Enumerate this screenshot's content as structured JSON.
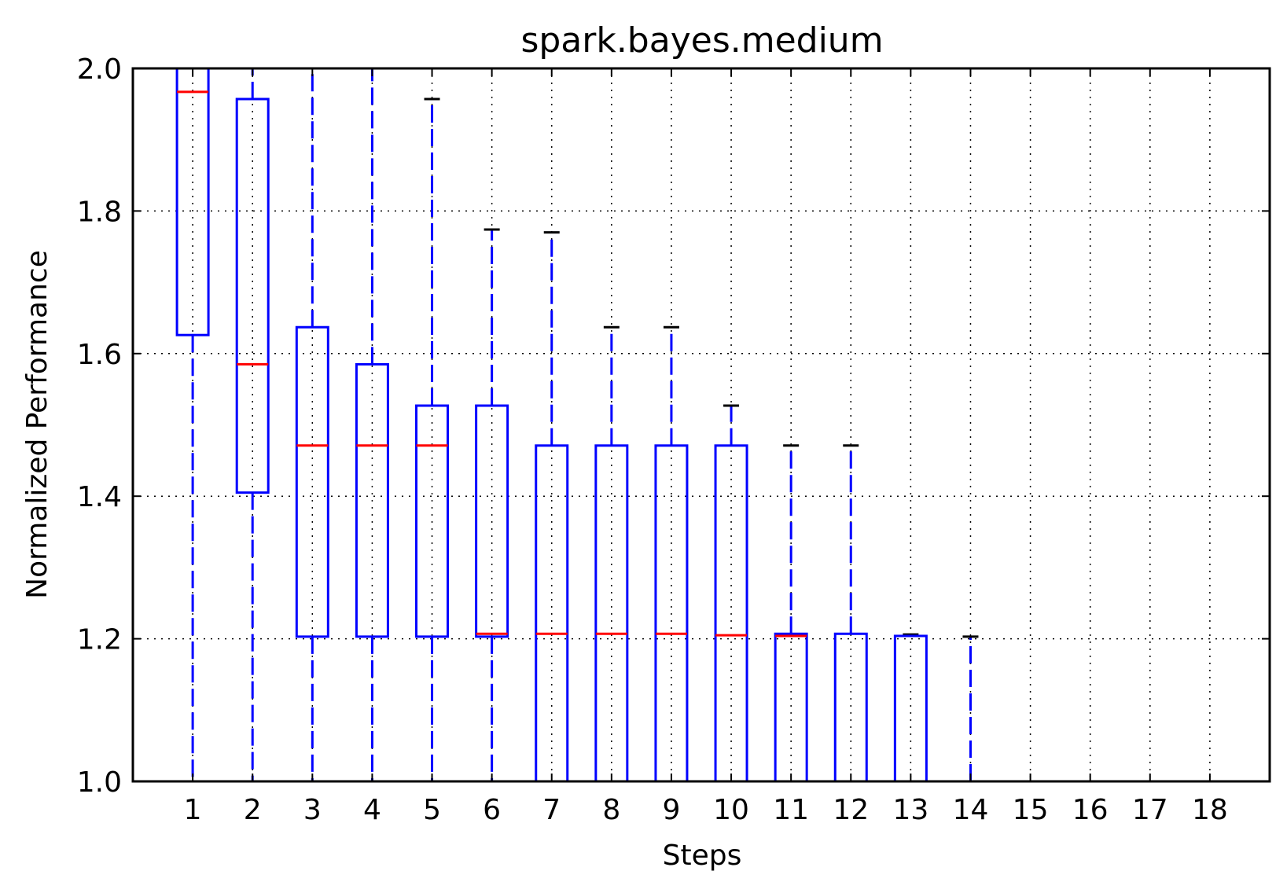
{
  "chart_data": {
    "type": "box",
    "title": "spark.bayes.medium",
    "xlabel": "Steps",
    "ylabel": "Normalized Performance",
    "ylim": [
      1.0,
      2.0
    ],
    "yticks": [
      "1.0",
      "1.2",
      "1.4",
      "1.6",
      "1.8",
      "2.0"
    ],
    "categories": [
      "1",
      "2",
      "3",
      "4",
      "5",
      "6",
      "7",
      "8",
      "9",
      "10",
      "11",
      "12",
      "13",
      "14",
      "15",
      "16",
      "17",
      "18"
    ],
    "grid": true,
    "colors": {
      "box": "#0000ff",
      "median": "#ff0000",
      "whisker": "#0000ff",
      "cap": "#000000",
      "grid": "#000000",
      "axes": "#000000"
    },
    "boxes": [
      {
        "step": "1",
        "low": 1.0,
        "q1": 1.626,
        "median": 1.967,
        "q3": 2.0,
        "high": 2.0,
        "cap_low": false,
        "cap_high": false
      },
      {
        "step": "2",
        "low": 1.0,
        "q1": 1.405,
        "median": 1.585,
        "q3": 1.957,
        "high": 2.0,
        "cap_low": false,
        "cap_high": false
      },
      {
        "step": "3",
        "low": 1.0,
        "q1": 1.203,
        "median": 1.471,
        "q3": 1.637,
        "high": 2.0,
        "cap_low": false,
        "cap_high": false
      },
      {
        "step": "4",
        "low": 1.0,
        "q1": 1.203,
        "median": 1.471,
        "q3": 1.585,
        "high": 2.0,
        "cap_low": false,
        "cap_high": false
      },
      {
        "step": "5",
        "low": 1.0,
        "q1": 1.203,
        "median": 1.471,
        "q3": 1.527,
        "high": 1.957,
        "cap_low": false,
        "cap_high": true
      },
      {
        "step": "6",
        "low": 1.0,
        "q1": 1.203,
        "median": 1.207,
        "q3": 1.527,
        "high": 1.774,
        "cap_low": false,
        "cap_high": true
      },
      {
        "step": "7",
        "low": 1.0,
        "q1": 1.0,
        "median": 1.207,
        "q3": 1.471,
        "high": 1.77,
        "cap_low": false,
        "cap_high": true
      },
      {
        "step": "8",
        "low": 1.0,
        "q1": 1.0,
        "median": 1.207,
        "q3": 1.471,
        "high": 1.637,
        "cap_low": false,
        "cap_high": true
      },
      {
        "step": "9",
        "low": 1.0,
        "q1": 1.0,
        "median": 1.207,
        "q3": 1.471,
        "high": 1.637,
        "cap_low": false,
        "cap_high": true
      },
      {
        "step": "10",
        "low": 1.0,
        "q1": 1.0,
        "median": 1.205,
        "q3": 1.471,
        "high": 1.527,
        "cap_low": false,
        "cap_high": true
      },
      {
        "step": "11",
        "low": 1.0,
        "q1": 1.0,
        "median": 1.204,
        "q3": 1.207,
        "high": 1.471,
        "cap_low": false,
        "cap_high": true
      },
      {
        "step": "12",
        "low": 1.0,
        "q1": 1.0,
        "median": 1.0,
        "q3": 1.207,
        "high": 1.471,
        "cap_low": false,
        "cap_high": true
      },
      {
        "step": "13",
        "low": 1.0,
        "q1": 1.0,
        "median": 1.0,
        "q3": 1.204,
        "high": 1.206,
        "cap_low": false,
        "cap_high": true
      },
      {
        "step": "14",
        "low": 1.0,
        "q1": 1.0,
        "median": 1.0,
        "q3": 1.0,
        "high": 1.203,
        "cap_low": false,
        "cap_high": true
      },
      {
        "step": "15",
        "low": 1.0,
        "q1": 1.0,
        "median": 1.0,
        "q3": 1.0,
        "high": 1.0,
        "cap_low": false,
        "cap_high": false
      },
      {
        "step": "16",
        "low": 1.0,
        "q1": 1.0,
        "median": 1.0,
        "q3": 1.0,
        "high": 1.0,
        "cap_low": false,
        "cap_high": false
      },
      {
        "step": "17",
        "low": 1.0,
        "q1": 1.0,
        "median": 1.0,
        "q3": 1.0,
        "high": 1.0,
        "cap_low": false,
        "cap_high": false
      },
      {
        "step": "18",
        "low": 1.0,
        "q1": 1.0,
        "median": 1.0,
        "q3": 1.0,
        "high": 1.0,
        "cap_low": false,
        "cap_high": false
      }
    ]
  }
}
